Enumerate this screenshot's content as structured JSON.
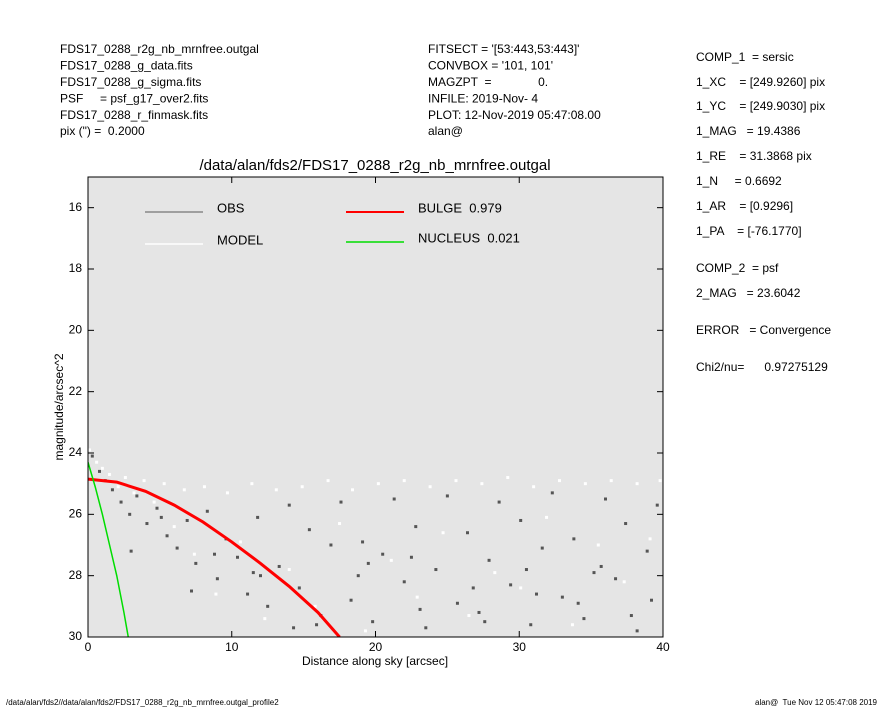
{
  "header_left": [
    "FDS17_0288_r2g_nb_mrnfree.outgal",
    "FDS17_0288_g_data.fits",
    "FDS17_0288_g_sigma.fits",
    "PSF     = psf_g17_over2.fits",
    "FDS17_0288_r_finmask.fits",
    "pix (\") =  0.2000"
  ],
  "header_middle": [
    "FITSECT = '[53:443,53:443]'",
    "CONVBOX = '101, 101'",
    "MAGZPT  =              0.",
    "INFILE: 2019-Nov- 4",
    "PLOT: 12-Nov-2019 05:47:08.00",
    "alan@"
  ],
  "header_right": [
    "COMP_1  = sersic",
    "1_XC    = [249.9260] pix",
    "1_YC    = [249.9030] pix",
    "1_MAG   = 19.4386",
    "1_RE    = 31.3868 pix",
    "1_N     = 0.6692",
    "1_AR    = [0.9296]",
    "1_PA    = [-76.1770]",
    "COMP_2  = psf",
    "2_MAG   = 23.6042",
    "ERROR   = Convergence",
    "Chi2/nu=      0.97275129"
  ],
  "footer_left": "/data/alan/fds2//data/alan/fds2/FDS17_0288_r2g_nb_mrnfree.outgal_profile2",
  "footer_right": "alan@  Tue Nov 12 05:47:08 2019",
  "chart_data": {
    "type": "scatter",
    "title": "/data/alan/fds2/FDS17_0288_r2g_nb_mrnfree.outgal",
    "x_label": "Distance along sky [arcsec]",
    "y_label": "magnitude/arcsec^2",
    "xlim": [
      0,
      40
    ],
    "xticks": [
      0,
      10,
      20,
      30,
      40
    ],
    "ylim": [
      30,
      15
    ],
    "yticks": [
      16,
      18,
      20,
      22,
      24,
      26,
      28,
      30
    ],
    "background": "#e5e5e5",
    "series": [
      {
        "name": "OBS",
        "color": "#555555",
        "style": "points",
        "x": [
          0.3,
          0.8,
          1.2,
          1.7,
          2.3,
          2.9,
          3.4,
          4.1,
          4.8,
          5.5,
          6.2,
          6.9,
          7.5,
          8.3,
          9.0,
          9.6,
          10.4,
          11.1,
          11.8,
          12.5,
          13.3,
          14.0,
          14.7,
          15.4,
          16.2,
          16.9,
          17.6,
          18.3,
          19.1,
          19.8,
          20.5,
          21.3,
          22.0,
          22.8,
          23.5,
          24.2,
          25.0,
          25.7,
          26.4,
          27.2,
          27.9,
          28.6,
          29.4,
          30.1,
          30.8,
          31.6,
          32.3,
          33.0,
          33.8,
          34.5,
          35.2,
          36.0,
          36.7,
          37.4,
          38.2,
          38.9,
          39.6,
          5.1,
          8.8,
          12.0,
          15.9,
          19.5,
          23.1,
          26.8,
          30.5,
          34.1,
          37.8,
          3.0,
          7.2,
          11.5,
          14.3,
          18.8,
          22.5,
          27.6,
          31.2,
          35.7,
          39.2
        ],
        "values": [
          24.1,
          24.6,
          24.9,
          25.2,
          25.6,
          26.0,
          25.4,
          26.3,
          25.8,
          26.7,
          27.1,
          26.2,
          27.6,
          25.9,
          28.1,
          26.8,
          27.4,
          28.6,
          26.1,
          29.0,
          27.7,
          25.7,
          28.4,
          26.5,
          29.3,
          27.0,
          25.6,
          28.8,
          26.9,
          29.5,
          27.3,
          25.5,
          28.2,
          26.4,
          29.7,
          27.8,
          25.4,
          28.9,
          26.6,
          29.2,
          27.5,
          25.6,
          28.3,
          26.2,
          29.6,
          27.1,
          25.3,
          28.7,
          26.8,
          29.4,
          27.9,
          25.5,
          28.1,
          26.3,
          29.8,
          27.2,
          25.7,
          26.1,
          27.3,
          28.0,
          29.6,
          27.6,
          29.1,
          28.4,
          27.8,
          28.9,
          29.3,
          27.2,
          28.5,
          27.9,
          29.7,
          28.0,
          27.4,
          29.5,
          28.6,
          27.7,
          28.8
        ]
      },
      {
        "name": "MODEL",
        "color": "#ffffff",
        "style": "points",
        "x": [
          0.1,
          0.6,
          1.0,
          1.5,
          2.1,
          2.6,
          3.2,
          3.9,
          4.6,
          5.3,
          6.0,
          6.7,
          7.4,
          8.1,
          8.9,
          9.7,
          10.6,
          11.4,
          12.3,
          13.1,
          14.0,
          14.9,
          15.8,
          16.7,
          17.5,
          18.4,
          19.3,
          20.2,
          21.1,
          22.0,
          22.9,
          23.8,
          24.7,
          25.6,
          26.5,
          27.4,
          28.3,
          29.2,
          30.1,
          31.0,
          31.9,
          32.8,
          33.7,
          34.6,
          35.5,
          36.4,
          37.3,
          38.2,
          39.1,
          39.8
        ],
        "values": [
          23.9,
          24.3,
          24.5,
          24.7,
          25.1,
          24.8,
          25.3,
          24.9,
          25.6,
          25.0,
          26.4,
          25.2,
          27.3,
          25.1,
          28.6,
          25.3,
          26.9,
          25.0,
          29.4,
          25.2,
          27.8,
          25.1,
          29.0,
          24.9,
          26.3,
          25.2,
          29.8,
          25.0,
          27.5,
          24.9,
          28.7,
          25.1,
          26.6,
          24.9,
          29.3,
          25.0,
          27.9,
          24.8,
          28.4,
          25.1,
          26.1,
          24.9,
          29.6,
          25.0,
          27.0,
          24.9,
          28.2,
          25.0,
          26.8,
          24.9
        ]
      },
      {
        "name": "BULGE  0.979",
        "color": "#ff0000",
        "style": "line",
        "x": [
          0,
          2,
          4,
          6,
          8,
          10,
          12,
          14,
          16,
          17.5
        ],
        "values": [
          24.85,
          24.95,
          25.25,
          25.7,
          26.25,
          26.9,
          27.6,
          28.35,
          29.2,
          30
        ]
      },
      {
        "name": "NUCLEUS  0.021",
        "color": "#00dd00",
        "style": "line",
        "x": [
          0,
          0.5,
          1,
          1.5,
          2,
          2.5,
          2.8
        ],
        "values": [
          24.3,
          25.1,
          26.0,
          27.0,
          28.0,
          29.2,
          30
        ]
      }
    ]
  }
}
